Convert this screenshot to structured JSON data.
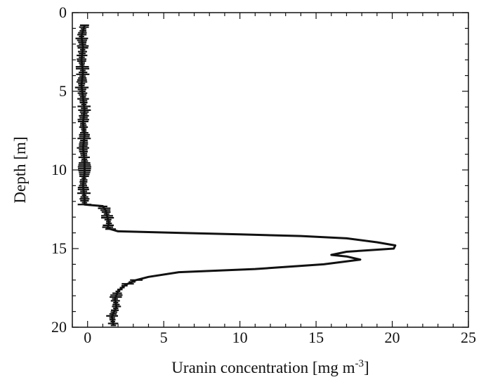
{
  "chart_data": {
    "type": "line",
    "title": "",
    "xlabel": "Uranin concentration [mg m",
    "xlabel_superscript": "-3",
    "xlabel_suffix": "]",
    "ylabel": "Depth [m]",
    "xlim": [
      -1,
      25
    ],
    "ylim": [
      20,
      0
    ],
    "y_inverted": true,
    "x_ticks": [
      0,
      5,
      10,
      15,
      20,
      25
    ],
    "y_ticks": [
      0,
      5,
      10,
      15,
      20
    ],
    "x_tick_labels": [
      "0",
      "5",
      "10",
      "15",
      "20",
      "25"
    ],
    "y_tick_labels": [
      "0",
      "5",
      "10",
      "15",
      "20"
    ],
    "grid": false,
    "legend": "none",
    "line_color": "#111111",
    "series": [
      {
        "points": [
          [
            -0.2,
            0.8
          ],
          [
            -0.4,
            1.5
          ],
          [
            -0.3,
            2.2
          ],
          [
            -0.4,
            3.0
          ],
          [
            -0.3,
            3.8
          ],
          [
            -0.4,
            4.6
          ],
          [
            -0.3,
            5.4
          ],
          [
            -0.2,
            6.2
          ],
          [
            -0.3,
            7.0
          ],
          [
            -0.2,
            7.8
          ],
          [
            -0.3,
            8.6
          ],
          [
            -0.2,
            9.4
          ],
          [
            -0.2,
            10.2
          ],
          [
            -0.3,
            11.0
          ],
          [
            -0.2,
            11.8
          ],
          [
            -0.2,
            12.2
          ],
          [
            1.0,
            12.3
          ],
          [
            1.2,
            12.6
          ],
          [
            1.3,
            13.0
          ],
          [
            1.4,
            13.4
          ],
          [
            1.3,
            13.7
          ],
          [
            2.0,
            13.9
          ],
          [
            6.0,
            14.0
          ],
          [
            10.0,
            14.1
          ],
          [
            14.0,
            14.2
          ],
          [
            17.0,
            14.35
          ],
          [
            19.0,
            14.6
          ],
          [
            20.2,
            14.8
          ],
          [
            20.1,
            15.0
          ],
          [
            17.0,
            15.2
          ],
          [
            16.0,
            15.4
          ],
          [
            17.0,
            15.5
          ],
          [
            17.9,
            15.7
          ],
          [
            15.5,
            16.0
          ],
          [
            11.0,
            16.3
          ],
          [
            6.0,
            16.5
          ],
          [
            4.0,
            16.8
          ],
          [
            3.2,
            17.0
          ],
          [
            2.5,
            17.3
          ],
          [
            2.0,
            17.7
          ],
          [
            1.8,
            18.2
          ],
          [
            1.9,
            18.7
          ],
          [
            1.6,
            19.3
          ],
          [
            1.7,
            19.9
          ]
        ]
      }
    ]
  }
}
